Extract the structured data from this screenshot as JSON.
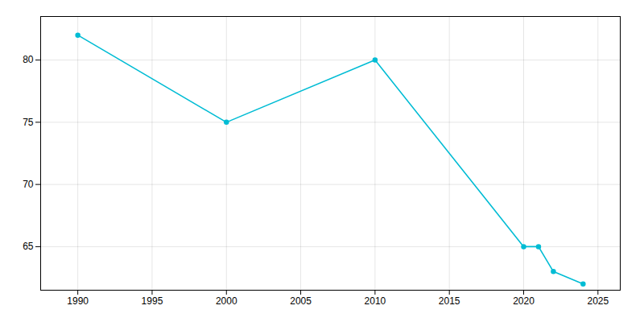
{
  "chart_data": {
    "type": "line",
    "x": [
      1990,
      2000,
      2010,
      2020,
      2021,
      2022,
      2024
    ],
    "values": [
      82,
      75,
      80,
      65,
      65,
      63,
      62
    ],
    "color": "#00BCD4",
    "marker": "circle",
    "xlim": [
      1987.5,
      2026.5
    ],
    "ylim": [
      61.5,
      83.5
    ],
    "xticks": [
      1990,
      1995,
      2000,
      2005,
      2010,
      2015,
      2020,
      2025
    ],
    "yticks": [
      65,
      70,
      75,
      80
    ],
    "grid": true
  }
}
